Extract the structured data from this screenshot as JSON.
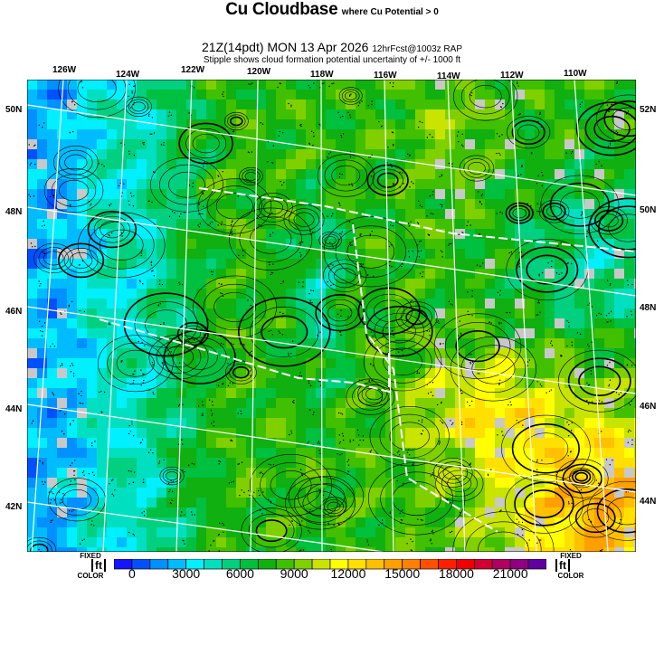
{
  "header": {
    "title": "Cu Cloudbase",
    "title_note": "where Cu Potential > 0",
    "valid_time": "21Z(14pdt) MON 13 Apr 2026",
    "forecast_info": "12hrFcst@1003z RAP",
    "subtitle": "Stipple shows cloud formation potential uncertainty of +/- 1000 ft"
  },
  "map": {
    "longitude_labels": [
      "126W",
      "124W",
      "122W",
      "120W",
      "118W",
      "116W",
      "114W",
      "112W",
      "110W"
    ],
    "latitude_labels_left": [
      "50N",
      "48N",
      "46N",
      "44N",
      "42N"
    ],
    "latitude_labels_right": [
      "52N",
      "50N",
      "48N",
      "46N",
      "44N"
    ],
    "gray_color": "#c8c8c8",
    "graticule_color": "#ffffff"
  },
  "colorbar": {
    "unit": "ft",
    "left_caption_top": "FIXED",
    "left_caption_bottom": "COLOR",
    "right_caption_top": "FIXED",
    "right_caption_bottom": "COLOR",
    "tick_labels": [
      "0",
      "3000",
      "6000",
      "9000",
      "12000",
      "15000",
      "18000",
      "21000"
    ],
    "bin_size_ft": 1000,
    "colors": [
      "#1414ff",
      "#0050ff",
      "#0090ff",
      "#00bcff",
      "#00f0ff",
      "#00e0c0",
      "#00d080",
      "#00c040",
      "#10b010",
      "#40c000",
      "#80d000",
      "#c8e400",
      "#ffff00",
      "#ffe000",
      "#ffc000",
      "#ffa000",
      "#ff8000",
      "#ff5000",
      "#ff2000",
      "#f00000",
      "#d00030",
      "#b00060",
      "#900080",
      "#6000a0"
    ]
  }
}
